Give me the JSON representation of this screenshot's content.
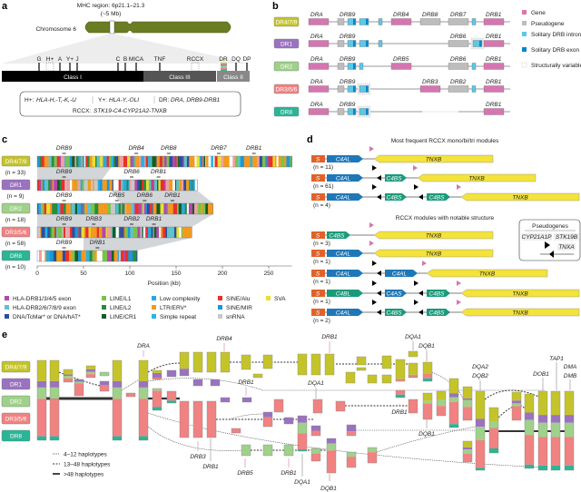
{
  "panel_letters": [
    "a",
    "b",
    "c",
    "d",
    "e"
  ],
  "groups": [
    {
      "label": "DR4/7/9",
      "color": "#c4c42a",
      "n": "(n = 33)"
    },
    {
      "label": "DR1",
      "color": "#9b72c0",
      "n": "(n = 9)"
    },
    {
      "label": "DR2",
      "color": "#9fd18b",
      "n": "(n = 18)"
    },
    {
      "label": "DR3/5/6",
      "color": "#f08282",
      "n": "(n = 58)"
    },
    {
      "label": "DR8",
      "color": "#2bb597",
      "n": "(n = 10)"
    }
  ],
  "panel_a": {
    "mhc_title": "MHC region: 6p21.1–21.3",
    "mhc_size": "(~5 Mb)",
    "chromosome_label": "Chromosome 6",
    "loci": [
      "G",
      "H+",
      "A",
      "Y+",
      "J",
      "C",
      "B",
      "MICA",
      "TNF",
      "RCCX",
      "DR",
      "DQ",
      "DP"
    ],
    "classes": [
      "Class I",
      "Class III",
      "Class II"
    ],
    "info_line1": [
      {
        "key": "H+: ",
        "val": "HLA-H,-T,-K,-U"
      },
      {
        "key": "Y+: ",
        "val": "HLA-Y,-OLI"
      },
      {
        "key": "DR: ",
        "val": "DRA, DRB9-DRB1"
      }
    ],
    "info_line2": {
      "key": "RCCX: ",
      "val": "STK19-C4-CYP21A2-TNXB"
    },
    "chromosome_color": "#6b7d22"
  },
  "panel_b": {
    "rows": [
      [
        "DRA",
        "DRB9",
        "DRB4",
        "DRB8",
        "DRB7",
        "DRB1"
      ],
      [
        "DRA",
        "DRB9",
        "DRB6",
        "DRB1"
      ],
      [
        "DRA",
        "DRB9",
        "DRB5",
        "DRB6",
        "DRB1"
      ],
      [
        "DRA",
        "DRB9",
        "DRB3",
        "DRB2",
        "DRB1"
      ],
      [
        "DRA",
        "DRB9",
        "DRB1"
      ]
    ],
    "legend": [
      {
        "label": "Gene",
        "color": "#d676b0"
      },
      {
        "label": "Pseudogene",
        "color": "#bdbdbd"
      },
      {
        "label": "Solitary DRB intron 1",
        "color": "#5bc8e8"
      },
      {
        "label": "Solitary DRB exon 1",
        "color": "#0a86c8"
      },
      {
        "label": "Structurally variable region",
        "color": "#ffffff"
      }
    ]
  },
  "panel_c": {
    "gene_labels": [
      [
        "DRB9",
        "DRB4",
        "DRB8",
        "DRB7",
        "DRB1"
      ],
      [
        "DRB9",
        "DRB6",
        "DRB1"
      ],
      [
        "DRB9",
        "DRB5",
        "DRB6",
        "DRB1"
      ],
      [
        "DRB9",
        "DRB3",
        "DRB2",
        "DRB1"
      ],
      [
        "DRB9",
        "DRB1"
      ]
    ],
    "lengths_kb": [
      275,
      173,
      190,
      167,
      108
    ],
    "xaxis": {
      "ticks": [
        "0",
        "50",
        "100",
        "150",
        "200",
        "250"
      ],
      "label": "Position (kb)",
      "range": [
        0,
        275
      ]
    },
    "legend": [
      {
        "label": "HLA-DRB1/3/4/5 exon",
        "color": "#b04aa8"
      },
      {
        "label": "HLA-DRB2/6/7/8/9 exon",
        "color": "#5fc3c8"
      },
      {
        "label": "DNA/TcMar* or DNA/hAT*",
        "color": "#2b4fa0"
      },
      {
        "label": "LINE/L1",
        "color": "#7cc24a"
      },
      {
        "label": "LINE/L2",
        "color": "#2a8a3e"
      },
      {
        "label": "LINE/CR1",
        "color": "#155c2c"
      },
      {
        "label": "Low complexity",
        "color": "#2aa8e0"
      },
      {
        "label": "LTR/ERV*",
        "color": "#f39a1e"
      },
      {
        "label": "Simple repeat",
        "color": "#27b4e6"
      },
      {
        "label": "SINE/Alu",
        "color": "#e8302c"
      },
      {
        "label": "SINE/MIR",
        "color": "#1a98d8"
      },
      {
        "label": "snRNA",
        "color": "#c8c8c8"
      },
      {
        "label": "SVA",
        "color": "#e8e030"
      }
    ]
  },
  "panel_d": {
    "title1": "Most frequent RCCX mono/bi/tri modules",
    "title2": "RCCX modules with notable structure",
    "rows": [
      {
        "n": "(n = 11)",
        "genes": [
          "S",
          "C4AL",
          "TNXB"
        ]
      },
      {
        "n": "(n = 61)",
        "genes": [
          "S",
          "C4AL",
          "C4BS",
          "TNXB"
        ]
      },
      {
        "n": "(n = 4)",
        "genes": [
          "S",
          "C4AL",
          "C4BS",
          "C4BS",
          "TNXB"
        ]
      },
      {
        "n": "(n = 3)",
        "genes": [
          "S",
          "C4BS",
          "TNXB"
        ]
      },
      {
        "n": "(n = 1)",
        "genes": [
          "S",
          "C4AL",
          "TNXB"
        ]
      },
      {
        "n": "(n = 1)",
        "genes": [
          "S",
          "C4AL",
          "C4AL",
          "TNXB"
        ]
      },
      {
        "n": "(n = 1)",
        "genes": [
          "S",
          "C4BL",
          "C4AS",
          "C4BS",
          "TNXB"
        ]
      },
      {
        "n": "(n = 2)",
        "genes": [
          "S",
          "C4AL",
          "C4BS",
          "C4BS",
          "TNXB"
        ]
      }
    ],
    "pseudogenes": {
      "title": "Pseudogenes",
      "labels": [
        "CYP21A1P",
        "STK19B",
        "TNXA"
      ]
    },
    "colors": {
      "S": "#e0622a",
      "C4A": "#1e78b8",
      "C4B": "#1a9a7a",
      "TNXB": "#f3e33a",
      "marker": "#d676b0"
    }
  },
  "panel_e": {
    "labels": [
      "DRA",
      "DRB4",
      "DRB1",
      "DRB3",
      "DRB1",
      "DRB5",
      "DRB1",
      "DQA1",
      "DQB1",
      "DRB1",
      "DQA1",
      "DQB1",
      "DQA1",
      "DRB1",
      "DQB1",
      "DQA2",
      "DQB2",
      "DOB1",
      "TAP1",
      "DMA",
      "DMB"
    ],
    "legend": [
      "4–12 haplotypes",
      "13–48 haplotypes",
      ">48 haplotypes"
    ]
  }
}
